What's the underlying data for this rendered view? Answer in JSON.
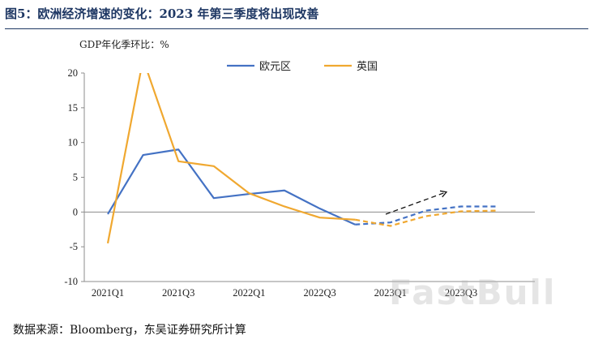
{
  "figure": {
    "title": "图5：欧洲经济增速的变化：2023 年第三季度将出现改善",
    "source": "数据来源：Bloomberg，东吴证券研究所计算",
    "watermark": "FastBull"
  },
  "chart_data": {
    "type": "line",
    "title": "",
    "ylabel": "GDP年化季环比：%",
    "xlabel": "",
    "ylim": [
      -10,
      20
    ],
    "y_ticks": [
      20,
      15,
      10,
      5,
      0,
      -5,
      -10
    ],
    "x_tick_labels": [
      "2021Q1",
      "2021Q3",
      "2022Q1",
      "2022Q3",
      "2023Q1",
      "2023Q3"
    ],
    "x": [
      "2021Q1",
      "2021Q2",
      "2021Q3",
      "2021Q4",
      "2022Q1",
      "2022Q2",
      "2022Q3",
      "2022Q4",
      "2023Q1",
      "2023Q2",
      "2023Q3",
      "2023Q4"
    ],
    "forecast_start_index": 8,
    "grid": false,
    "legend_position": "top",
    "series": [
      {
        "name": "欧元区",
        "color": "#4472c4",
        "values": [
          -0.3,
          8.2,
          9.0,
          2.0,
          2.6,
          3.1,
          0.5,
          -1.8,
          -1.5,
          0.2,
          0.8,
          0.8
        ]
      },
      {
        "name": "英国",
        "color": "#f0a830",
        "values": [
          -4.5,
          22.0,
          7.3,
          6.6,
          2.7,
          0.8,
          -0.8,
          -1.1,
          -2.0,
          -0.6,
          0.1,
          0.2
        ]
      }
    ],
    "annotation": {
      "type": "dashed-arrow",
      "direction": "up-right",
      "meaning": "improvement"
    }
  }
}
